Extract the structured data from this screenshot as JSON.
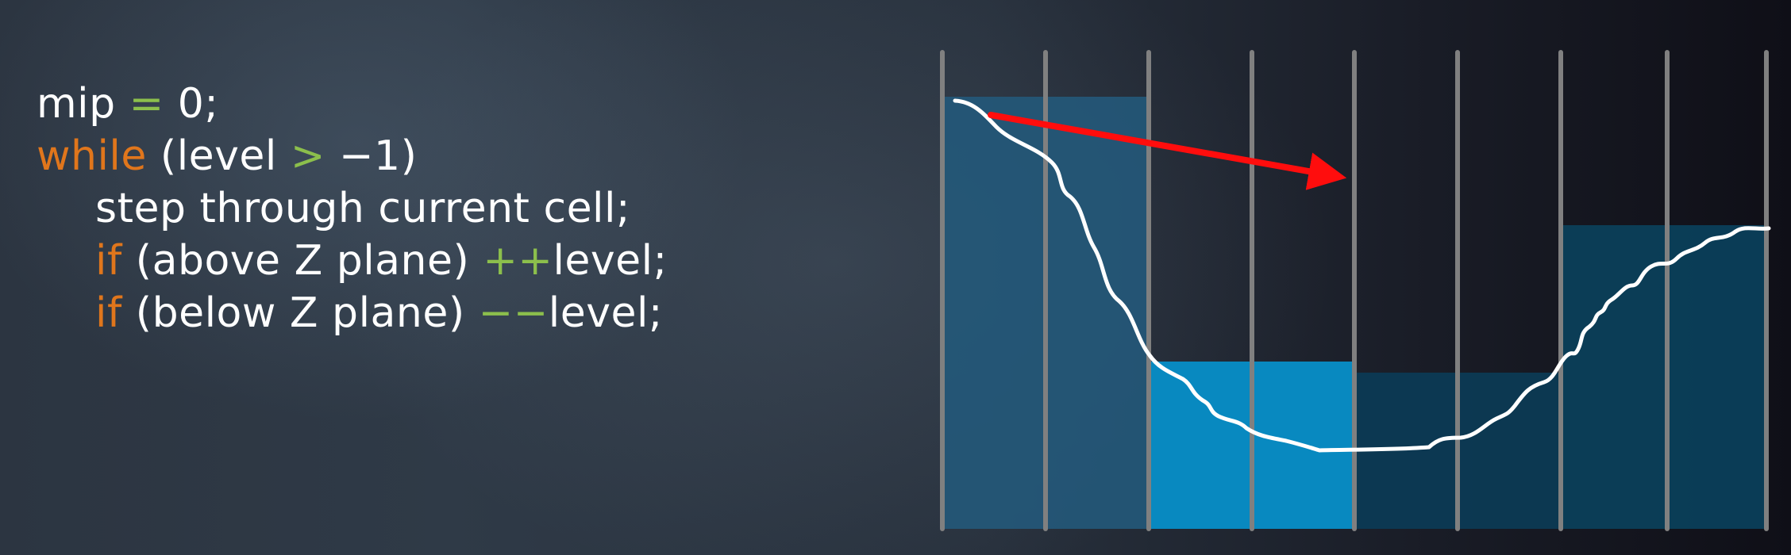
{
  "code": {
    "line1": {
      "a": "mip ",
      "b": "=",
      "c": " 0;"
    },
    "line2": {
      "kw": "while",
      "a": " (level ",
      "op": ">",
      "b": " −1)"
    },
    "line3": {
      "text": "step through current cell;"
    },
    "line4": {
      "kw": "if",
      "a": " (above Z plane) ",
      "op": "++",
      "b": "level;"
    },
    "line5": {
      "kw": "if",
      "a": " (below Z plane) ",
      "op": "−−",
      "b": "level;"
    }
  },
  "colors": {
    "keyword": "#e0761c",
    "operator": "#8cbf4c",
    "text": "#ffffff",
    "ray_arrow": "#ff0d0d",
    "grid_line": "#808080",
    "depth_curve": "#ffffff",
    "cell_mip_high": "#24597a",
    "cell_mip_low_bright": "#0889c0",
    "cell_mid": "#0c3a54",
    "cell_right": "#0b3f5a"
  }
}
